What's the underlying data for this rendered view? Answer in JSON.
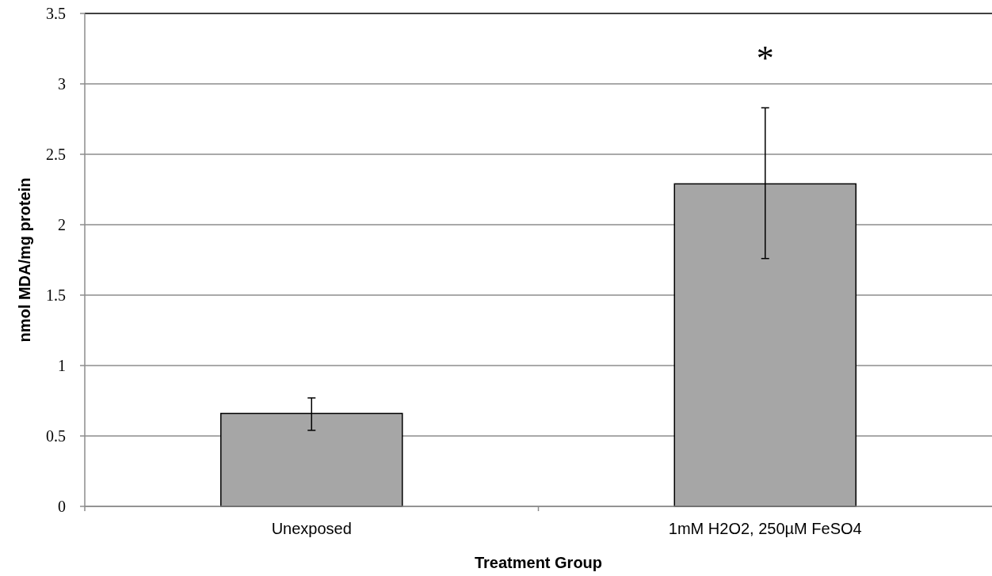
{
  "chart_data": {
    "type": "bar",
    "xlabel": "Treatment Group",
    "ylabel": "nmol MDA/mg protein",
    "categories": [
      "Unexposed",
      "1mM H2O2, 250µM FeSO4"
    ],
    "values": [
      0.66,
      2.29
    ],
    "color": "#a6a6a6",
    "errors": [
      [
        0.54,
        0.77
      ],
      [
        1.76,
        2.83
      ]
    ],
    "ylim": [
      0,
      3.5
    ],
    "yticks": [
      0,
      0.5,
      1,
      1.5,
      2,
      2.5,
      3,
      3.5
    ],
    "grid": "y",
    "annotations": [
      "*"
    ]
  }
}
